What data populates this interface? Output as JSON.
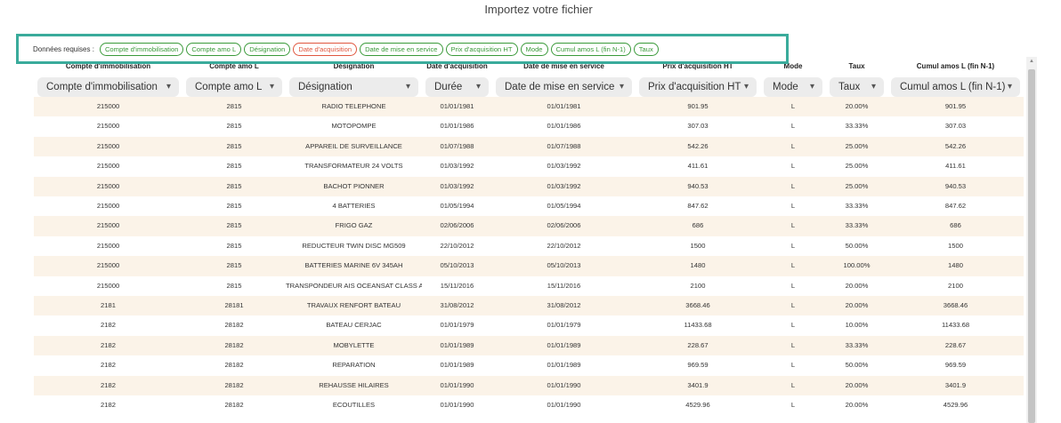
{
  "title": "Importez votre fichier",
  "required": {
    "label": "Données requises :",
    "tags": [
      {
        "text": "Compte d'immobilisation",
        "color": "#3a9a3a"
      },
      {
        "text": "Compte amo L",
        "color": "#3a9a3a"
      },
      {
        "text": "Désignation",
        "color": "#3a9a3a"
      },
      {
        "text": "Date d'acquisition",
        "color": "#e0573f"
      },
      {
        "text": "Date de mise en service",
        "color": "#3a9a3a"
      },
      {
        "text": "Prix d'acquisition HT",
        "color": "#3a9a3a"
      },
      {
        "text": "Mode",
        "color": "#3a9a3a"
      },
      {
        "text": "Cumul amos L (fin N-1)",
        "color": "#3a9a3a"
      },
      {
        "text": "Taux",
        "color": "#3a9a3a"
      }
    ]
  },
  "table": {
    "headers": [
      "Compte d'immobilisation",
      "Compte amo L",
      "Désignation",
      "Date d'acquisition",
      "Date de mise en service",
      "Prix d'acquisition HT",
      "Mode",
      "Taux",
      "Cumul amos L (fin N-1)"
    ],
    "selects": [
      "Compte d'immobilisation",
      "Compte amo L",
      "Désignation",
      "Durée",
      "Date de mise en service",
      "Prix d'acquisition HT",
      "Mode",
      "Taux",
      "Cumul amos L (fin N-1)"
    ],
    "rows": [
      [
        "215000",
        "2815",
        "RADIO TELEPHONE",
        "01/01/1981",
        "01/01/1981",
        "901.95",
        "L",
        "20.00%",
        "901.95"
      ],
      [
        "215000",
        "2815",
        "MOTOPOMPE",
        "01/01/1986",
        "01/01/1986",
        "307.03",
        "L",
        "33.33%",
        "307.03"
      ],
      [
        "215000",
        "2815",
        "APPAREIL DE SURVEILLANCE",
        "01/07/1988",
        "01/07/1988",
        "542.26",
        "L",
        "25.00%",
        "542.26"
      ],
      [
        "215000",
        "2815",
        "TRANSFORMATEUR 24 VOLTS",
        "01/03/1992",
        "01/03/1992",
        "411.61",
        "L",
        "25.00%",
        "411.61"
      ],
      [
        "215000",
        "2815",
        "BACHOT PIONNER",
        "01/03/1992",
        "01/03/1992",
        "940.53",
        "L",
        "25.00%",
        "940.53"
      ],
      [
        "215000",
        "2815",
        "4 BATTERIES",
        "01/05/1994",
        "01/05/1994",
        "847.62",
        "L",
        "33.33%",
        "847.62"
      ],
      [
        "215000",
        "2815",
        "FRIGO GAZ",
        "02/06/2006",
        "02/06/2006",
        "686",
        "L",
        "33.33%",
        "686"
      ],
      [
        "215000",
        "2815",
        "REDUCTEUR TWIN DISC MG509",
        "22/10/2012",
        "22/10/2012",
        "1500",
        "L",
        "50.00%",
        "1500"
      ],
      [
        "215000",
        "2815",
        "BATTERIES MARINE 6V 345AH",
        "05/10/2013",
        "05/10/2013",
        "1480",
        "L",
        "100.00%",
        "1480"
      ],
      [
        "215000",
        "2815",
        "TRANSPONDEUR AIS OCEANSAT CLASS A",
        "15/11/2016",
        "15/11/2016",
        "2100",
        "L",
        "20.00%",
        "2100"
      ],
      [
        "2181",
        "28181",
        "TRAVAUX RENFORT BATEAU",
        "31/08/2012",
        "31/08/2012",
        "3668.46",
        "L",
        "20.00%",
        "3668.46"
      ],
      [
        "2182",
        "28182",
        "BATEAU CERJAC",
        "01/01/1979",
        "01/01/1979",
        "11433.68",
        "L",
        "10.00%",
        "11433.68"
      ],
      [
        "2182",
        "28182",
        "MOBYLETTE",
        "01/01/1989",
        "01/01/1989",
        "228.67",
        "L",
        "33.33%",
        "228.67"
      ],
      [
        "2182",
        "28182",
        "REPARATION",
        "01/01/1989",
        "01/01/1989",
        "969.59",
        "L",
        "50.00%",
        "969.59"
      ],
      [
        "2182",
        "28182",
        "REHAUSSE HILAIRES",
        "01/01/1990",
        "01/01/1990",
        "3401.9",
        "L",
        "20.00%",
        "3401.9"
      ],
      [
        "2182",
        "28182",
        "ECOUTILLES",
        "01/01/1990",
        "01/01/1990",
        "4529.96",
        "L",
        "20.00%",
        "4529.96"
      ]
    ]
  }
}
